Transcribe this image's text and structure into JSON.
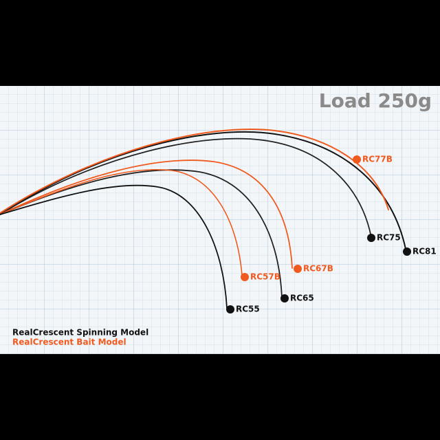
{
  "title": "Load 250g",
  "rods": [
    {
      "label": "RC77B"
    },
    {
      "label": "RC75"
    },
    {
      "label": "RC81"
    },
    {
      "label": "RC57B"
    },
    {
      "label": "RC67B"
    },
    {
      "label": "RC65"
    },
    {
      "label": "RC55"
    }
  ],
  "legend": {
    "spinning": "RealCrescent Spinning Model",
    "bait": "RealCrescent Bait Model"
  }
}
